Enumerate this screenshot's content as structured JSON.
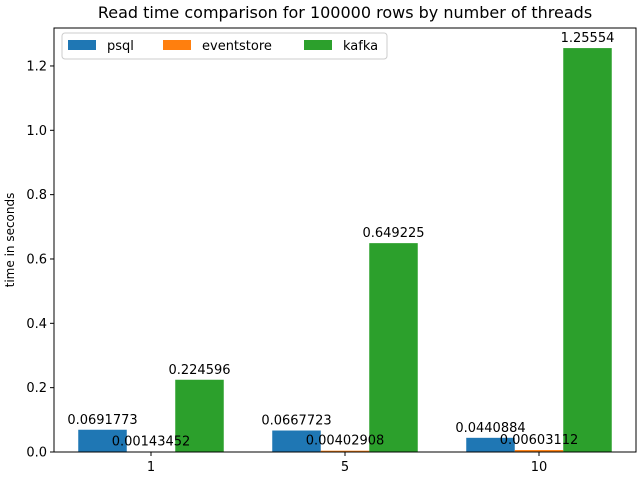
{
  "chart_data": {
    "type": "bar",
    "title": "Read time comparison for 100000 rows by number of threads",
    "xlabel": "",
    "ylabel": "time in seconds",
    "categories": [
      "1",
      "5",
      "10"
    ],
    "ylim": [
      0,
      1.318
    ],
    "yticks": [
      "0.0",
      "0.2",
      "0.4",
      "0.6",
      "0.8",
      "1.0",
      "1.2"
    ],
    "ytick_values": [
      0,
      0.2,
      0.4,
      0.6,
      0.8,
      1.0,
      1.2
    ],
    "grid": false,
    "legend_position": "top-left",
    "series": [
      {
        "name": "psql",
        "color": "#1f77b4",
        "values": [
          0.0691773,
          0.0667723,
          0.0440884
        ],
        "labels": [
          "0.0691773",
          "0.0667723",
          "0.0440884"
        ]
      },
      {
        "name": "eventstore",
        "color": "#ff7f0e",
        "values": [
          0.00143452,
          0.00402908,
          0.00603112
        ],
        "labels": [
          "0.00143452",
          "0.00402908",
          "0.00603112"
        ]
      },
      {
        "name": "kafka",
        "color": "#2ca02c",
        "values": [
          0.224596,
          0.649225,
          1.25554
        ],
        "labels": [
          "0.224596",
          "0.649225",
          "1.25554"
        ]
      }
    ]
  }
}
